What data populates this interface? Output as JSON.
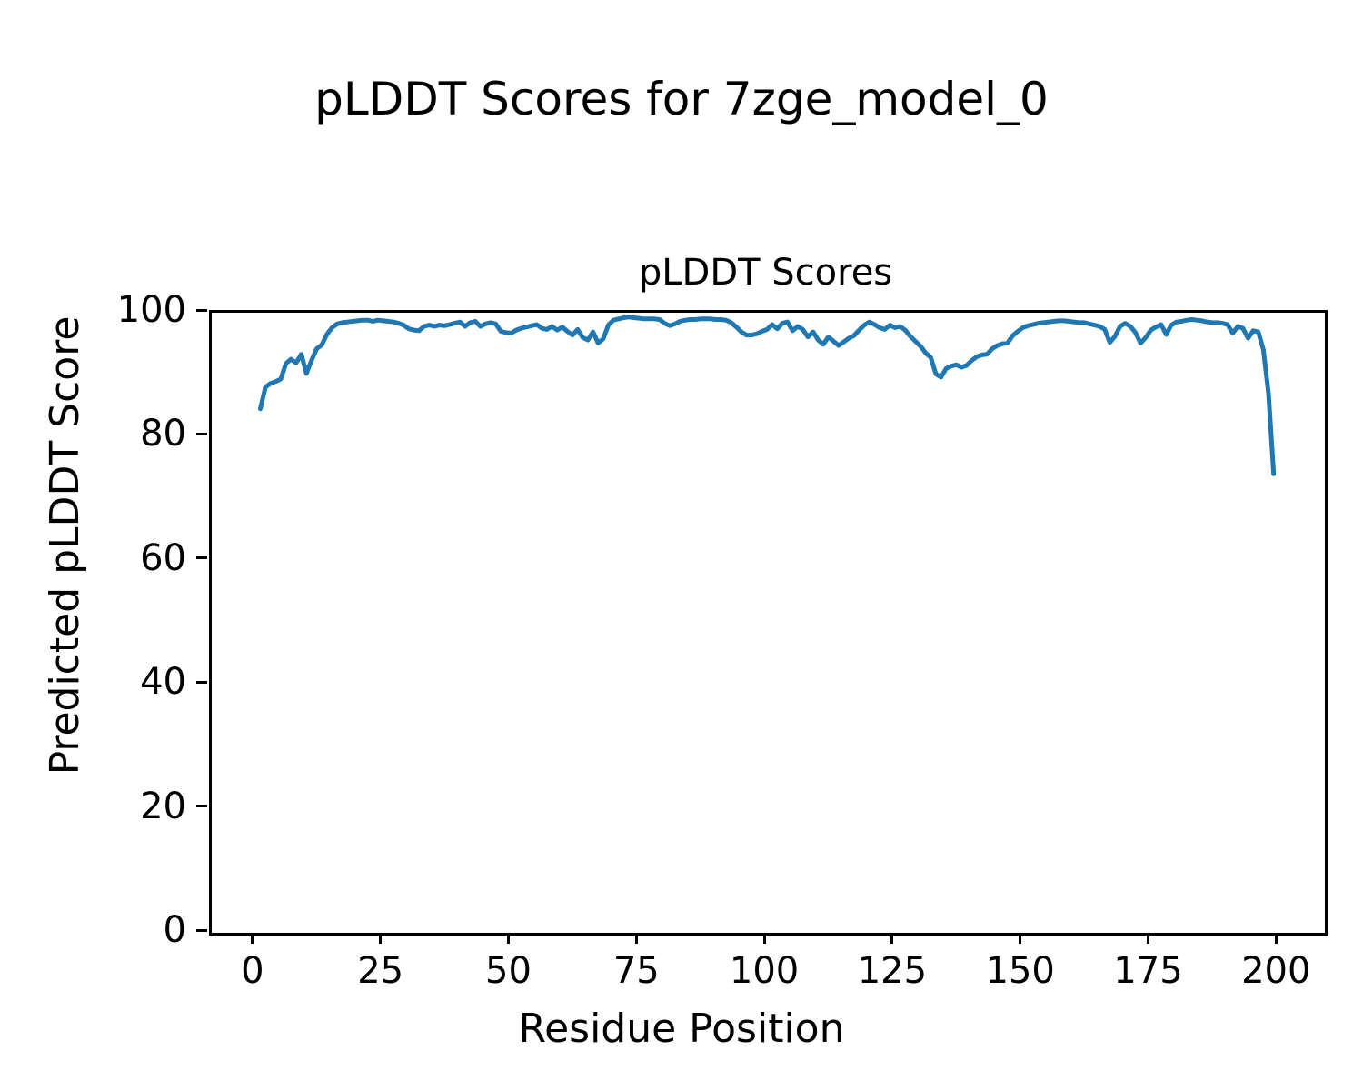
{
  "figure": {
    "suptitle": "pLDDT Scores for 7zge_model_0",
    "background_color": "#ffffff",
    "text_color": "#000000"
  },
  "chart_data": {
    "type": "line",
    "title": "pLDDT Scores",
    "suptitle": "pLDDT Scores for 7zge_model_0",
    "xlabel": "Residue Position",
    "ylabel": "Predicted pLDDT Score",
    "legend": "none",
    "grid": false,
    "line_color": "#1f77b4",
    "line_width": 5,
    "xlim": [
      -8.5,
      209.0
    ],
    "ylim": [
      0,
      100
    ],
    "xticks": [
      0,
      25,
      50,
      75,
      100,
      125,
      150,
      175,
      200
    ],
    "yticks": [
      0,
      20,
      40,
      60,
      80,
      100
    ],
    "x_start": 1,
    "series": [
      {
        "name": "pLDDT",
        "values": [
          84.5,
          88.0,
          88.6,
          88.9,
          89.3,
          91.8,
          92.5,
          91.9,
          93.3,
          90.2,
          92.3,
          94.2,
          94.8,
          96.5,
          97.6,
          98.2,
          98.4,
          98.5,
          98.6,
          98.7,
          98.8,
          98.8,
          98.6,
          98.8,
          98.7,
          98.6,
          98.5,
          98.3,
          98.0,
          97.4,
          97.2,
          97.1,
          97.8,
          98.0,
          97.8,
          98.0,
          97.9,
          98.1,
          98.3,
          98.5,
          97.8,
          98.4,
          98.6,
          97.8,
          98.2,
          98.4,
          98.2,
          97.0,
          96.8,
          96.7,
          97.2,
          97.5,
          97.7,
          97.9,
          98.1,
          97.5,
          97.3,
          97.8,
          97.2,
          97.7,
          97.0,
          96.4,
          97.3,
          96.0,
          95.6,
          96.9,
          95.1,
          95.8,
          98.0,
          98.8,
          99.0,
          99.2,
          99.3,
          99.2,
          99.1,
          99.0,
          99.0,
          99.0,
          98.9,
          98.3,
          97.9,
          98.2,
          98.6,
          98.8,
          98.9,
          98.9,
          99.0,
          99.0,
          99.0,
          98.9,
          98.9,
          98.8,
          98.4,
          97.7,
          96.9,
          96.4,
          96.4,
          96.6,
          97.0,
          97.3,
          98.1,
          97.4,
          98.3,
          98.5,
          97.1,
          97.8,
          97.3,
          96.1,
          96.9,
          95.6,
          94.9,
          96.1,
          95.4,
          94.7,
          95.3,
          95.9,
          96.3,
          97.2,
          98.0,
          98.5,
          98.1,
          97.6,
          97.3,
          98.0,
          97.6,
          97.8,
          97.2,
          96.2,
          95.4,
          94.6,
          93.5,
          92.8,
          90.1,
          89.6,
          91.0,
          91.4,
          91.6,
          91.2,
          91.5,
          92.3,
          92.9,
          93.2,
          93.3,
          94.2,
          94.7,
          95.0,
          95.1,
          96.3,
          97.0,
          97.6,
          97.9,
          98.1,
          98.3,
          98.4,
          98.5,
          98.6,
          98.7,
          98.7,
          98.6,
          98.5,
          98.4,
          98.4,
          98.2,
          98.0,
          97.8,
          97.3,
          95.2,
          96.2,
          97.8,
          98.3,
          97.8,
          96.8,
          95.1,
          96.0,
          97.2,
          97.7,
          98.1,
          96.5,
          98.0,
          98.5,
          98.6,
          98.8,
          98.9,
          98.8,
          98.7,
          98.5,
          98.4,
          98.4,
          98.3,
          98.1,
          96.7,
          97.8,
          97.5,
          95.9,
          97.1,
          96.9,
          94.0,
          87.0,
          74.0
        ]
      }
    ]
  }
}
